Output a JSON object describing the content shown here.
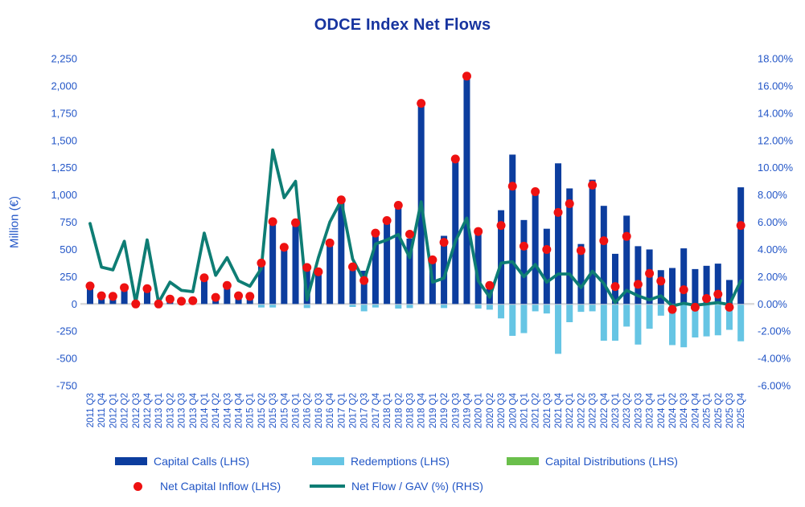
{
  "title": "ODCE Index Net Flows",
  "y_axis": {
    "label": "Million (€)",
    "tick_labels": [
      "2,250",
      "2,000",
      "1,750",
      "1,500",
      "1,250",
      "1,000",
      "750",
      "500",
      "250",
      "0",
      "-250",
      "-500",
      "-750"
    ],
    "max": 2250,
    "min": -750,
    "step": 250
  },
  "y2_axis": {
    "tick_labels": [
      "18.00%",
      "16.00%",
      "14.00%",
      "12.00%",
      "10.00%",
      "8.00%",
      "6.00%",
      "4.00%",
      "2.00%",
      "0.00%",
      "-2.00%",
      "-4.00%",
      "-6.00%"
    ],
    "max": 18,
    "min": -6,
    "step": 2
  },
  "legend": {
    "capital_calls": "Capital Calls (LHS)",
    "redemptions": "Redemptions (LHS)",
    "distributions": "Capital Distributions (LHS)",
    "net_inflow": "Net Capital Inflow (LHS)",
    "net_flow_gav": "Net Flow / GAV (%) (RHS)"
  },
  "chart_data": {
    "type": "combo (bar + scatter + line)",
    "title": "ODCE Index Net Flows",
    "xlabel": "",
    "ylabel": "Million (€)",
    "y2label": "Net Flow / GAV (%)",
    "ylim": [
      -750,
      2250
    ],
    "y2lim": [
      -6,
      18
    ],
    "grid": "zero-line only",
    "legend_position": "bottom",
    "categories": [
      "2011 Q3",
      "2011 Q4",
      "2012 Q1",
      "2012 Q2",
      "2012 Q3",
      "2012 Q4",
      "2013 Q1",
      "2013 Q2",
      "2013 Q3",
      "2013 Q4",
      "2014 Q1",
      "2014 Q2",
      "2014 Q3",
      "2014 Q4",
      "2015 Q1",
      "2015 Q2",
      "2015 Q3",
      "2015 Q4",
      "2016 Q1",
      "2016 Q2",
      "2016 Q3",
      "2016 Q4",
      "2017 Q1",
      "2017 Q2",
      "2017 Q3",
      "2017 Q4",
      "2018 Q1",
      "2018 Q2",
      "2018 Q3",
      "2018 Q4",
      "2019 Q1",
      "2019 Q2",
      "2019 Q3",
      "2019 Q4",
      "2020 Q1",
      "2020 Q2",
      "2020 Q3",
      "2020 Q4",
      "2021 Q1",
      "2021 Q2",
      "2021 Q3",
      "2021 Q4",
      "2022 Q1",
      "2022 Q2",
      "2022 Q3",
      "2022 Q4",
      "2023 Q1",
      "2023 Q2",
      "2023 Q3",
      "2023 Q4",
      "2024 Q1",
      "2024 Q2",
      "2024 Q3",
      "2024 Q4",
      "2025 Q1",
      "2025 Q2",
      "2025 Q3",
      "2025 Q4"
    ],
    "series": [
      {
        "name": "Capital Calls (LHS)",
        "type": "bar",
        "axis": "left",
        "color": "#0C3D9E",
        "values": [
          150,
          80,
          80,
          145,
          20,
          140,
          30,
          55,
          40,
          35,
          225,
          65,
          160,
          80,
          80,
          350,
          735,
          540,
          730,
          320,
          285,
          535,
          950,
          325,
          305,
          650,
          750,
          890,
          600,
          1860,
          390,
          625,
          1350,
          2080,
          650,
          185,
          860,
          1370,
          770,
          1040,
          690,
          1290,
          1060,
          550,
          1140,
          900,
          460,
          810,
          530,
          500,
          310,
          330,
          510,
          320,
          350,
          370,
          220,
          1070
        ]
      },
      {
        "name": "Redemptions (LHS)",
        "type": "bar",
        "axis": "left",
        "color": "#66C5E4",
        "values": [
          0,
          0,
          0,
          0,
          0,
          0,
          0,
          0,
          0,
          0,
          0,
          0,
          0,
          0,
          0,
          -25,
          -25,
          0,
          0,
          -30,
          0,
          0,
          0,
          -20,
          -60,
          -25,
          0,
          -35,
          -30,
          0,
          0,
          -30,
          0,
          0,
          -35,
          -45,
          -125,
          -285,
          -260,
          -60,
          -80,
          -450,
          -160,
          -65,
          -60,
          -330,
          -330,
          -200,
          -365,
          -220,
          -100,
          -370,
          -390,
          -300,
          -290,
          -280,
          -230,
          -335
        ]
      },
      {
        "name": "Capital Distributions (LHS)",
        "type": "bar",
        "axis": "left",
        "color": "#6ABF4B",
        "values": [
          0,
          0,
          0,
          0,
          0,
          0,
          0,
          0,
          0,
          0,
          0,
          0,
          0,
          0,
          0,
          0,
          0,
          0,
          0,
          0,
          0,
          0,
          0,
          0,
          0,
          0,
          0,
          0,
          0,
          0,
          0,
          0,
          0,
          0,
          0,
          0,
          0,
          0,
          0,
          0,
          0,
          0,
          0,
          0,
          0,
          0,
          0,
          0,
          0,
          0,
          0,
          0,
          0,
          0,
          0,
          0,
          0,
          0
        ]
      },
      {
        "name": "Net Capital Inflow (LHS)",
        "type": "scatter",
        "axis": "left",
        "color": "#EE1111",
        "values": [
          165,
          75,
          70,
          150,
          0,
          140,
          0,
          45,
          25,
          30,
          240,
          60,
          170,
          75,
          70,
          375,
          755,
          520,
          745,
          335,
          295,
          560,
          955,
          340,
          215,
          650,
          765,
          905,
          640,
          1840,
          405,
          565,
          1330,
          2090,
          665,
          170,
          720,
          1080,
          530,
          1030,
          500,
          840,
          920,
          490,
          1090,
          580,
          160,
          620,
          180,
          280,
          210,
          -50,
          130,
          -30,
          50,
          90,
          -30,
          720
        ]
      },
      {
        "name": "Net Flow / GAV (%) (RHS)",
        "type": "line",
        "axis": "right",
        "color": "#0E7D74",
        "values": [
          5.9,
          2.7,
          2.5,
          4.6,
          0.1,
          4.7,
          0.1,
          1.6,
          1.0,
          0.9,
          5.2,
          2.1,
          3.4,
          1.7,
          1.3,
          2.6,
          11.3,
          7.8,
          9.0,
          0.3,
          3.4,
          6.0,
          7.6,
          3.3,
          1.7,
          4.4,
          4.7,
          5.1,
          3.4,
          7.5,
          1.6,
          1.9,
          4.6,
          6.3,
          1.7,
          0.5,
          3.0,
          3.1,
          2.0,
          2.9,
          1.6,
          2.2,
          2.2,
          1.2,
          2.4,
          1.5,
          0.1,
          1.0,
          0.6,
          0.3,
          0.6,
          -0.15,
          0.05,
          -0.1,
          0.0,
          0.1,
          -0.05,
          1.7
        ]
      }
    ],
    "colors": {
      "tick_text": "#2356C7",
      "title_text": "#17349F",
      "zero_line": "#D9D9D9"
    }
  }
}
